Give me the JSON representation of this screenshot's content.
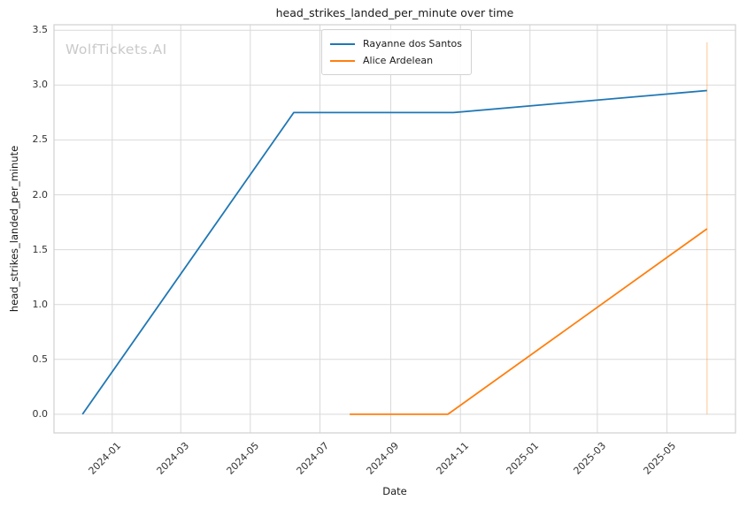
{
  "watermark": "WolfTickets.AI",
  "chart_data": {
    "type": "line",
    "title": "head_strikes_landed_per_minute over time",
    "xlabel": "Date",
    "ylabel": "head_strikes_landed_per_minute",
    "grid": true,
    "background": "#ffffff",
    "grid_color": "#d9d9d9",
    "spine_color": "#d0d0d0",
    "x_axis": {
      "min": "2023-11-11",
      "max": "2025-06-30",
      "ticks": [
        {
          "label": "2024-01",
          "date": "2024-01-01"
        },
        {
          "label": "2024-03",
          "date": "2024-03-01"
        },
        {
          "label": "2024-05",
          "date": "2024-05-01"
        },
        {
          "label": "2024-07",
          "date": "2024-07-01"
        },
        {
          "label": "2024-09",
          "date": "2024-09-01"
        },
        {
          "label": "2024-11",
          "date": "2024-11-01"
        },
        {
          "label": "2025-01",
          "date": "2025-01-01"
        },
        {
          "label": "2025-03",
          "date": "2025-03-01"
        },
        {
          "label": "2025-05",
          "date": "2025-05-01"
        }
      ]
    },
    "y_axis": {
      "min": -0.17,
      "max": 3.55,
      "ticks": [
        {
          "label": "0.0",
          "value": 0.0
        },
        {
          "label": "0.5",
          "value": 0.5
        },
        {
          "label": "1.0",
          "value": 1.0
        },
        {
          "label": "1.5",
          "value": 1.5
        },
        {
          "label": "2.0",
          "value": 2.0
        },
        {
          "label": "2.5",
          "value": 2.5
        },
        {
          "label": "3.0",
          "value": 3.0
        },
        {
          "label": "3.5",
          "value": 3.5
        }
      ]
    },
    "legend": {
      "position": "upper-center"
    },
    "series": [
      {
        "name": "Rayanne dos Santos",
        "color": "#1f77b4",
        "points": [
          [
            "2023-12-06",
            0.0
          ],
          [
            "2024-06-08",
            2.75
          ],
          [
            "2024-10-26",
            2.75
          ],
          [
            "2025-06-05",
            2.95
          ]
        ]
      },
      {
        "name": "Alice Ardelean",
        "color": "#ff7f0e",
        "points": [
          [
            "2024-07-27",
            0.0
          ],
          [
            "2024-10-21",
            0.0
          ],
          [
            "2025-06-05",
            1.69
          ]
        ],
        "error_bar": {
          "date": "2025-06-05",
          "low": 0.0,
          "high": 3.39
        }
      }
    ]
  }
}
